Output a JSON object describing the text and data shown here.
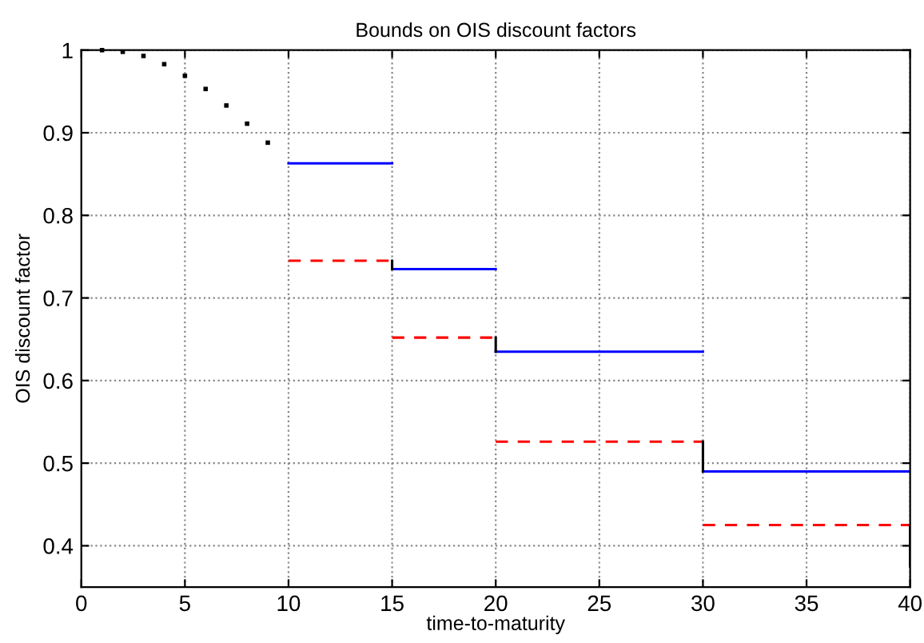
{
  "chart_data": {
    "type": "line",
    "title": "Bounds on OIS discount factors",
    "xlabel": "time-to-maturity",
    "ylabel": "OIS discount factor",
    "xlim": [
      0,
      40
    ],
    "ylim": [
      0.35,
      1
    ],
    "xticks": [
      0,
      5,
      10,
      15,
      20,
      25,
      30,
      35,
      40
    ],
    "yticks": [
      0.4,
      0.5,
      0.6,
      0.7,
      0.8,
      0.9,
      1
    ],
    "grid": true,
    "series": [
      {
        "type": "scatter",
        "color": "#000000",
        "marker": "square",
        "x": [
          1,
          2,
          3,
          4,
          5,
          6,
          7,
          8,
          9
        ],
        "values": [
          1,
          0.998,
          0.993,
          0.983,
          0.969,
          0.953,
          0.933,
          0.911,
          0.888
        ]
      },
      {
        "color": "#0000ff",
        "line_style": "solid",
        "x": [
          10,
          15
        ],
        "values": [
          0.863,
          0.863
        ]
      },
      {
        "color": "#0000ff",
        "line_style": "solid",
        "x": [
          15,
          20
        ],
        "values": [
          0.735,
          0.735
        ]
      },
      {
        "color": "#0000ff",
        "line_style": "solid",
        "x": [
          20,
          30
        ],
        "values": [
          0.635,
          0.635
        ]
      },
      {
        "color": "#0000ff",
        "line_style": "solid",
        "x": [
          30,
          40
        ],
        "values": [
          0.49,
          0.49
        ]
      },
      {
        "color": "#ff0000",
        "line_style": "dashed",
        "x": [
          10,
          15
        ],
        "values": [
          0.745,
          0.745
        ]
      },
      {
        "color": "#ff0000",
        "line_style": "dashed",
        "x": [
          15,
          20
        ],
        "values": [
          0.652,
          0.652
        ]
      },
      {
        "color": "#ff0000",
        "line_style": "dashed",
        "x": [
          20,
          30
        ],
        "values": [
          0.526,
          0.526
        ]
      },
      {
        "color": "#ff0000",
        "line_style": "dashed",
        "x": [
          30,
          40
        ],
        "values": [
          0.425,
          0.425
        ]
      },
      {
        "color": "#000000",
        "line_style": "solid",
        "x": [
          15,
          15
        ],
        "values": [
          0.735,
          0.745
        ]
      },
      {
        "color": "#000000",
        "line_style": "solid",
        "x": [
          20,
          20
        ],
        "values": [
          0.635,
          0.652
        ]
      },
      {
        "color": "#000000",
        "line_style": "solid",
        "x": [
          30,
          30
        ],
        "values": [
          0.49,
          0.526
        ]
      },
      {
        "color": "#000000",
        "line_style": "solid",
        "x": [
          40,
          40
        ],
        "values": [
          0.375,
          0.425
        ]
      }
    ]
  }
}
